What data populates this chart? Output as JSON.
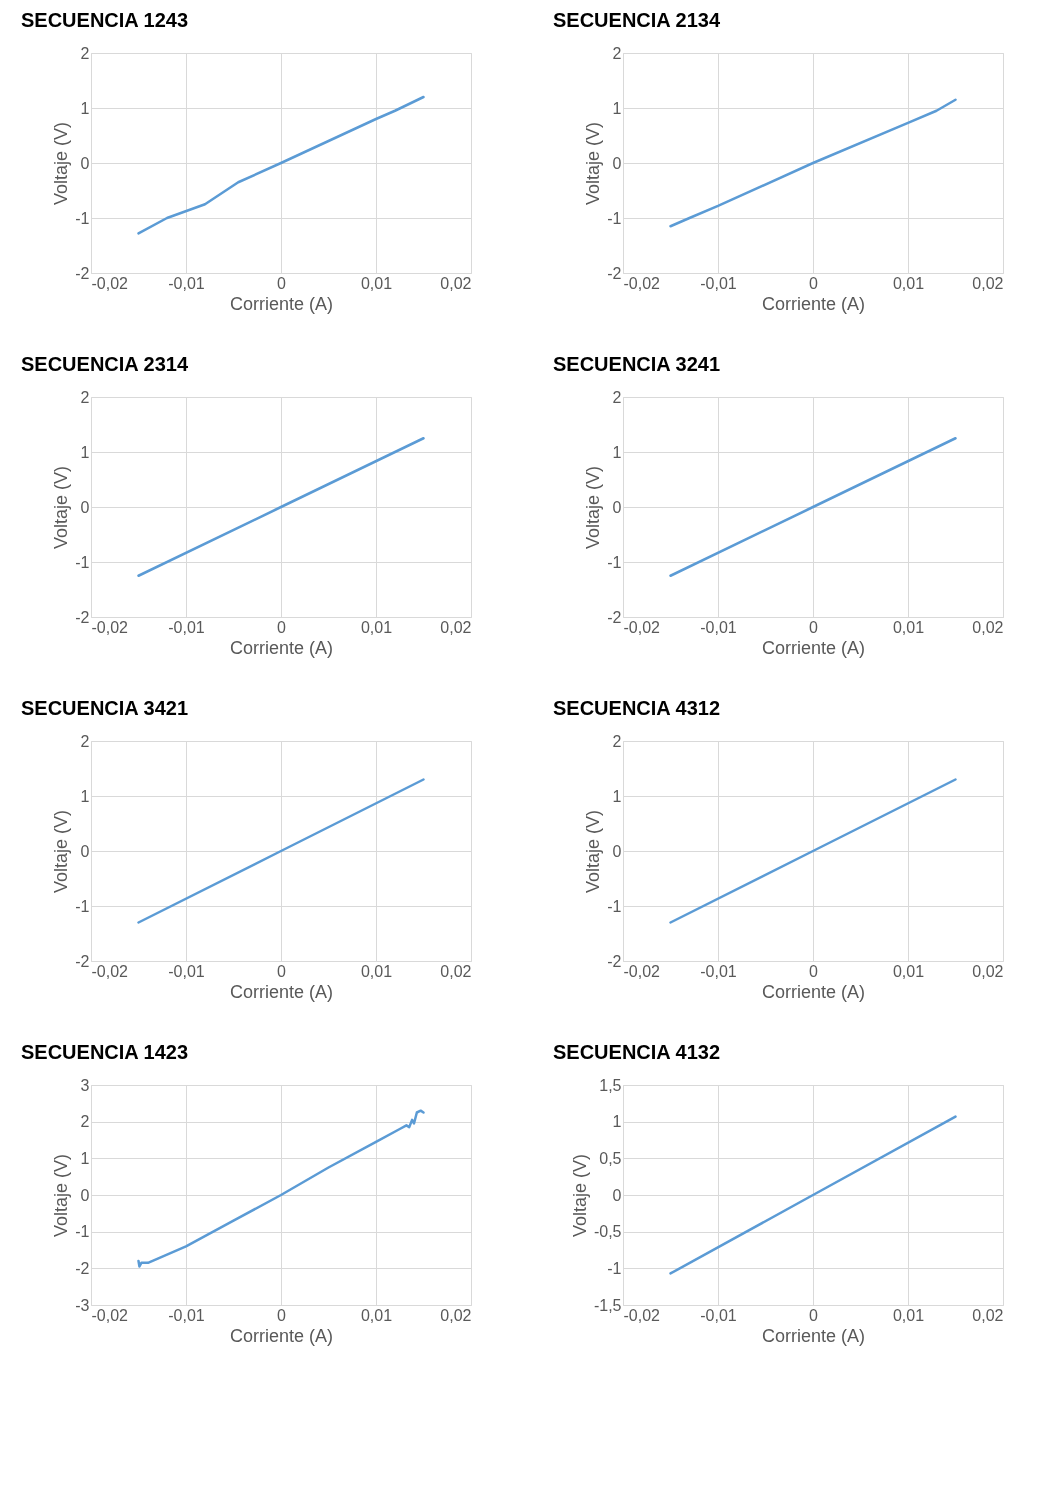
{
  "chart_data": [
    {
      "type": "line",
      "title": "SECUENCIA 1243",
      "xlabel": "Corriente (A)",
      "ylabel": "Voltaje (V)",
      "grid": true,
      "xlim": [
        -0.02,
        0.02
      ],
      "ylim": [
        -2,
        2
      ],
      "xticks": [
        {
          "value": -0.02,
          "label": "-0,02"
        },
        {
          "value": -0.01,
          "label": "-0,01"
        },
        0,
        {
          "value": 0.01,
          "label": "0,01"
        },
        {
          "value": 0.02,
          "label": "0,02"
        }
      ],
      "yticks": [
        -2,
        -1,
        0,
        1,
        2
      ],
      "x": [
        -0.015,
        -0.012,
        -0.008,
        -0.0045,
        0,
        0.005,
        0.01,
        0.012,
        0.015
      ],
      "series": [
        {
          "color": "#5b9bd5",
          "values": [
            -1.28,
            -1.0,
            -0.75,
            -0.35,
            0,
            0.4,
            0.8,
            0.95,
            1.2
          ]
        }
      ]
    },
    {
      "type": "line",
      "title": "SECUENCIA 2134",
      "xlabel": "Corriente (A)",
      "ylabel": "Voltaje (V)",
      "grid": true,
      "xlim": [
        -0.02,
        0.02
      ],
      "ylim": [
        -2,
        2
      ],
      "xticks": [
        {
          "value": -0.02,
          "label": "-0,02"
        },
        {
          "value": -0.01,
          "label": "-0,01"
        },
        0,
        {
          "value": 0.01,
          "label": "0,01"
        },
        {
          "value": 0.02,
          "label": "0,02"
        }
      ],
      "yticks": [
        -2,
        -1,
        0,
        1,
        2
      ],
      "x": [
        -0.015,
        -0.013,
        -0.01,
        0,
        0.01,
        0.013,
        0.015
      ],
      "series": [
        {
          "color": "#5b9bd5",
          "values": [
            -1.15,
            -1.0,
            -0.78,
            0,
            0.73,
            0.95,
            1.15
          ]
        }
      ]
    },
    {
      "type": "line",
      "title": "SECUENCIA 2314",
      "xlabel": "Corriente (A)",
      "ylabel": "Voltaje (V)",
      "grid": true,
      "xlim": [
        -0.02,
        0.02
      ],
      "ylim": [
        -2,
        2
      ],
      "xticks": [
        {
          "value": -0.02,
          "label": "-0,02"
        },
        {
          "value": -0.01,
          "label": "-0,01"
        },
        0,
        {
          "value": 0.01,
          "label": "0,01"
        },
        {
          "value": 0.02,
          "label": "0,02"
        }
      ],
      "yticks": [
        -2,
        -1,
        0,
        1,
        2
      ],
      "x": [
        -0.015,
        0,
        0.015
      ],
      "series": [
        {
          "color": "#5b9bd5",
          "values": [
            -1.25,
            0,
            1.25
          ]
        }
      ]
    },
    {
      "type": "line",
      "title": "SECUENCIA 3241",
      "xlabel": "Corriente (A)",
      "ylabel": "Voltaje (V)",
      "grid": true,
      "xlim": [
        -0.02,
        0.02
      ],
      "ylim": [
        -2,
        2
      ],
      "xticks": [
        {
          "value": -0.02,
          "label": "-0,02"
        },
        {
          "value": -0.01,
          "label": "-0,01"
        },
        0,
        {
          "value": 0.01,
          "label": "0,01"
        },
        {
          "value": 0.02,
          "label": "0,02"
        }
      ],
      "yticks": [
        -2,
        -1,
        0,
        1,
        2
      ],
      "x": [
        -0.015,
        0,
        0.015
      ],
      "series": [
        {
          "color": "#5b9bd5",
          "values": [
            -1.25,
            0,
            1.25
          ]
        }
      ]
    },
    {
      "type": "line",
      "title": "SECUENCIA 3421",
      "xlabel": "Corriente (A)",
      "ylabel": "Voltaje (V)",
      "grid": true,
      "xlim": [
        -0.02,
        0.02
      ],
      "ylim": [
        -2,
        2
      ],
      "xticks": [
        {
          "value": -0.02,
          "label": "-0,02"
        },
        {
          "value": -0.01,
          "label": "-0,01"
        },
        0,
        {
          "value": 0.01,
          "label": "0,01"
        },
        {
          "value": 0.02,
          "label": "0,02"
        }
      ],
      "yticks": [
        -2,
        -1,
        0,
        1,
        2
      ],
      "x": [
        -0.015,
        0,
        0.015
      ],
      "series": [
        {
          "color": "#5b9bd5",
          "values": [
            -1.3,
            0,
            1.3
          ]
        }
      ]
    },
    {
      "type": "line",
      "title": "SECUENCIA 4312",
      "xlabel": "Corriente (A)",
      "ylabel": "Voltaje (V)",
      "grid": true,
      "xlim": [
        -0.02,
        0.02
      ],
      "ylim": [
        -2,
        2
      ],
      "xticks": [
        {
          "value": -0.02,
          "label": "-0,02"
        },
        {
          "value": -0.01,
          "label": "-0,01"
        },
        0,
        {
          "value": 0.01,
          "label": "0,01"
        },
        {
          "value": 0.02,
          "label": "0,02"
        }
      ],
      "yticks": [
        -2,
        -1,
        0,
        1,
        2
      ],
      "x": [
        -0.015,
        0,
        0.015
      ],
      "series": [
        {
          "color": "#5b9bd5",
          "values": [
            -1.3,
            0,
            1.3
          ]
        }
      ]
    },
    {
      "type": "line",
      "title": "SECUENCIA 1423",
      "xlabel": "Corriente (A)",
      "ylabel": "Voltaje (V)",
      "grid": true,
      "xlim": [
        -0.02,
        0.02
      ],
      "ylim": [
        -3,
        3
      ],
      "xticks": [
        {
          "value": -0.02,
          "label": "-0,02"
        },
        {
          "value": -0.01,
          "label": "-0,01"
        },
        0,
        {
          "value": 0.01,
          "label": "0,01"
        },
        {
          "value": 0.02,
          "label": "0,02"
        }
      ],
      "yticks": [
        -3,
        -2,
        -1,
        0,
        1,
        2,
        3
      ],
      "x": [
        -0.015,
        -0.0149,
        -0.0147,
        -0.014,
        -0.01,
        -0.005,
        0,
        0.005,
        0.01,
        0.0125,
        0.0132,
        0.0135,
        0.0138,
        0.014,
        0.0143,
        0.0147,
        0.015
      ],
      "series": [
        {
          "color": "#5b9bd5",
          "values": [
            -1.8,
            -1.95,
            -1.85,
            -1.85,
            -1.4,
            -0.7,
            0,
            0.75,
            1.45,
            1.8,
            1.9,
            1.85,
            2.05,
            1.95,
            2.25,
            2.3,
            2.25
          ]
        }
      ]
    },
    {
      "type": "line",
      "title": "SECUENCIA 4132",
      "xlabel": "Corriente (A)",
      "ylabel": "Voltaje (V)",
      "grid": true,
      "xlim": [
        -0.02,
        0.02
      ],
      "ylim": [
        -1.5,
        1.5
      ],
      "xticks": [
        {
          "value": -0.02,
          "label": "-0,02"
        },
        {
          "value": -0.01,
          "label": "-0,01"
        },
        0,
        {
          "value": 0.01,
          "label": "0,01"
        },
        {
          "value": 0.02,
          "label": "0,02"
        }
      ],
      "yticks": [
        {
          "value": -1.5,
          "label": "-1,5"
        },
        -1,
        {
          "value": -0.5,
          "label": "-0,5"
        },
        0,
        {
          "value": 0.5,
          "label": "0,5"
        },
        1,
        {
          "value": 1.5,
          "label": "1,5"
        }
      ],
      "x": [
        -0.015,
        0,
        0.015
      ],
      "series": [
        {
          "color": "#5b9bd5",
          "values": [
            -1.07,
            0,
            1.07
          ]
        }
      ]
    }
  ]
}
